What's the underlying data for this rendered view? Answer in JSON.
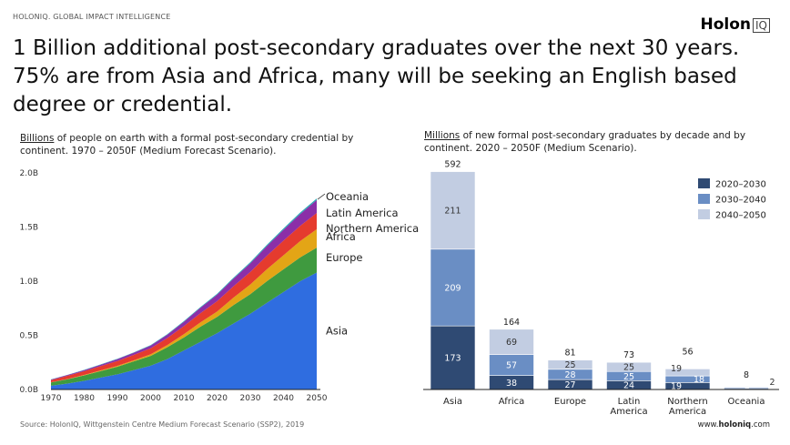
{
  "header": {
    "kicker": "HOLONIQ. GLOBAL IMPACT INTELLIGENCE",
    "logo_main": "Holon",
    "logo_suffix": "IQ",
    "headline": "1 Billion additional post-secondary graduates over the next 30 years. 75% are from Asia and Africa, many will be seeking an English based degree or credential."
  },
  "footer": {
    "source": "Source: HolonIQ, Wittgenstein Centre Medium Forecast Scenario (SSP2), 2019",
    "url_prefix": "www.",
    "url_brand": "holoniq",
    "url_suffix": ".com"
  },
  "colors": {
    "Asia": "#2f6de0",
    "Europe": "#3f9a3f",
    "Africa": "#e3a516",
    "Northern America": "#e53b2e",
    "Latin America": "#8b2fa8",
    "Oceania": "#2aa7b5",
    "2020-2030": "#2f4a73",
    "2030-2040": "#6a8ec4",
    "2040-2050": "#c2cde2"
  },
  "chart_data": [
    {
      "type": "area",
      "stacked": true,
      "caption_underlined": "Billions",
      "caption_rest": " of people on earth with a formal post-secondary credential by continent. 1970 – 2050F (Medium Forecast Scenario).",
      "x": [
        1970,
        1975,
        1980,
        1985,
        1990,
        1995,
        2000,
        2005,
        2010,
        2015,
        2020,
        2025,
        2030,
        2035,
        2040,
        2045,
        2050
      ],
      "x_ticks": [
        "1970",
        "1980",
        "1990",
        "2000",
        "2010",
        "2020",
        "2030",
        "2040",
        "2050"
      ],
      "y_ticks": [
        "0.0B",
        "0.5B",
        "1.0B",
        "1.5B",
        "2.0B"
      ],
      "ylim": [
        0,
        2.0
      ],
      "series": [
        {
          "name": "Asia",
          "values": [
            0.035,
            0.055,
            0.08,
            0.11,
            0.14,
            0.18,
            0.22,
            0.28,
            0.36,
            0.44,
            0.52,
            0.61,
            0.7,
            0.8,
            0.9,
            1.0,
            1.08
          ]
        },
        {
          "name": "Europe",
          "values": [
            0.03,
            0.04,
            0.05,
            0.06,
            0.07,
            0.08,
            0.09,
            0.11,
            0.12,
            0.14,
            0.15,
            0.17,
            0.18,
            0.2,
            0.21,
            0.22,
            0.23
          ]
        },
        {
          "name": "Africa",
          "values": [
            0.001,
            0.002,
            0.004,
            0.006,
            0.008,
            0.01,
            0.015,
            0.02,
            0.03,
            0.04,
            0.05,
            0.07,
            0.09,
            0.11,
            0.13,
            0.15,
            0.17
          ]
        },
        {
          "name": "Northern America",
          "values": [
            0.02,
            0.03,
            0.035,
            0.04,
            0.045,
            0.05,
            0.055,
            0.065,
            0.075,
            0.085,
            0.095,
            0.105,
            0.115,
            0.125,
            0.135,
            0.14,
            0.15
          ]
        },
        {
          "name": "Latin America",
          "values": [
            0.005,
            0.007,
            0.01,
            0.013,
            0.017,
            0.02,
            0.025,
            0.03,
            0.04,
            0.05,
            0.06,
            0.07,
            0.08,
            0.09,
            0.1,
            0.11,
            0.12
          ]
        },
        {
          "name": "Oceania",
          "values": [
            0.002,
            0.002,
            0.003,
            0.003,
            0.004,
            0.004,
            0.005,
            0.005,
            0.006,
            0.007,
            0.008,
            0.009,
            0.01,
            0.011,
            0.012,
            0.013,
            0.014
          ]
        }
      ],
      "label_order": [
        "Oceania",
        "Latin America",
        "Northern America",
        "Africa",
        "Europe",
        "Asia"
      ]
    },
    {
      "type": "bar",
      "stacked": true,
      "caption_underlined": "Millions",
      "caption_rest": " of new formal post-secondary graduates by decade and by continent. 2020 – 2050F (Medium Scenario).",
      "categories": [
        "Asia",
        "Africa",
        "Europe",
        "Latin America",
        "Northern America",
        "Oceania"
      ],
      "category_lines": [
        [
          "Asia"
        ],
        [
          "Africa"
        ],
        [
          "Europe"
        ],
        [
          "Latin",
          "America"
        ],
        [
          "Northern",
          "America"
        ],
        [
          "Oceania"
        ]
      ],
      "totals": [
        592,
        164,
        81,
        73,
        56,
        8
      ],
      "series": [
        {
          "name": "2020-2030",
          "legend": "2020–2030",
          "values": [
            173,
            38,
            27,
            24,
            19,
            3
          ]
        },
        {
          "name": "2030-2040",
          "legend": "2030–2040",
          "values": [
            209,
            57,
            28,
            25,
            18,
            3
          ]
        },
        {
          "name": "2040-2050",
          "legend": "2040–2050",
          "values": [
            211,
            69,
            25,
            25,
            19,
            2
          ]
        }
      ],
      "ylim": [
        0,
        592
      ]
    }
  ]
}
